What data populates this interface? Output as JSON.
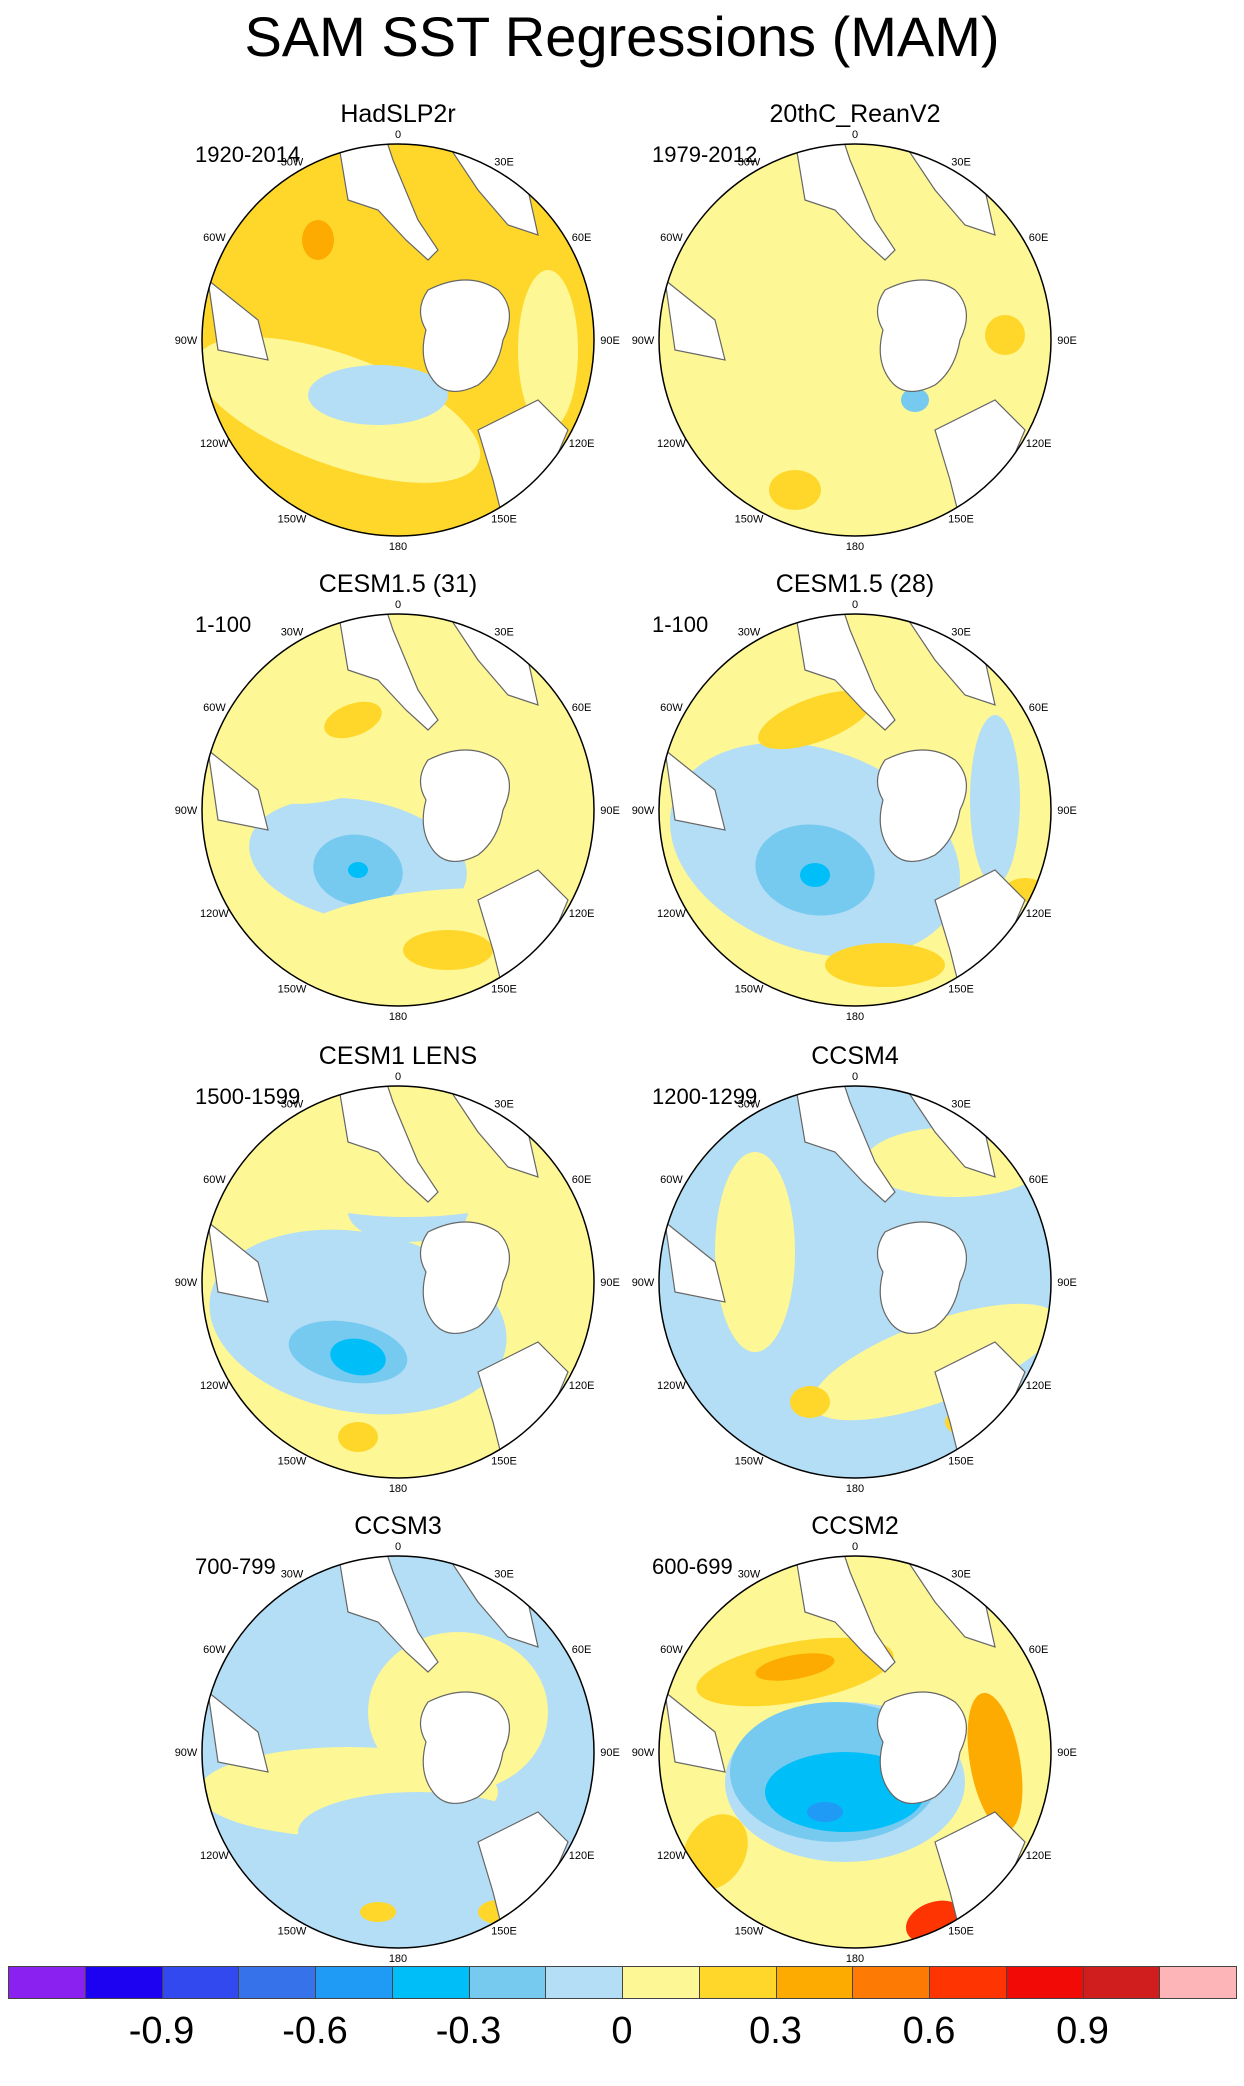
{
  "figure": {
    "title": "SAM SST Regressions (MAM)"
  },
  "grid_labels": {
    "top": "0",
    "upper_right": "30E",
    "right_upper": "60E",
    "right": "90E",
    "right_lower": "120E",
    "lower_right": "150E",
    "bottom": "180",
    "lower_left": "150W",
    "left_lower": "120W",
    "left": "90W",
    "left_upper": "60W",
    "upper_left": "30W"
  },
  "panels": [
    {
      "title": "HadSLP2r",
      "period": "1920-2014",
      "base_color": "#fed72a"
    },
    {
      "title": "20thC_ReanV2",
      "period": "1979-2012",
      "base_color": "#fef795"
    },
    {
      "title": "CESM1.5 (31)",
      "period": "1-100",
      "base_color": "#fef795"
    },
    {
      "title": "CESM1.5 (28)",
      "period": "1-100",
      "base_color": "#fef795"
    },
    {
      "title": "CESM1 LENS",
      "period": "1500-1599",
      "base_color": "#fef795"
    },
    {
      "title": "CCSM4",
      "period": "1200-1299",
      "base_color": "#b4def5"
    },
    {
      "title": "CCSM3",
      "period": "700-799",
      "base_color": "#b4def5"
    },
    {
      "title": "CCSM2",
      "period": "600-699",
      "base_color": "#fef795"
    }
  ],
  "colorbar": {
    "colors": [
      "#8a21f0",
      "#1d02f2",
      "#3149ee",
      "#3673ea",
      "#1f9bf5",
      "#00bff8",
      "#76caf0",
      "#b4def5",
      "#fef795",
      "#fed72a",
      "#fdab00",
      "#fd7b05",
      "#fe3403",
      "#f20a07",
      "#d01d1e",
      "#fdb5b7"
    ],
    "labels": [
      "-0.9",
      "-0.6",
      "-0.3",
      "0",
      "0.3",
      "0.6",
      "0.9"
    ]
  },
  "chart_data": {
    "type": "heatmap",
    "title": "SAM SST Regressions (MAM)",
    "maps": [
      "HadSLP2r",
      "20thC_ReanV2",
      "CESM1.5 (31)",
      "CESM1.5 (28)",
      "CESM1 LENS",
      "CCSM4",
      "CCSM3",
      "CCSM2"
    ],
    "projection": "south polar stereographic",
    "color_levels": [
      -0.9,
      -0.6,
      -0.3,
      0,
      0.3,
      0.6,
      0.9
    ]
  }
}
